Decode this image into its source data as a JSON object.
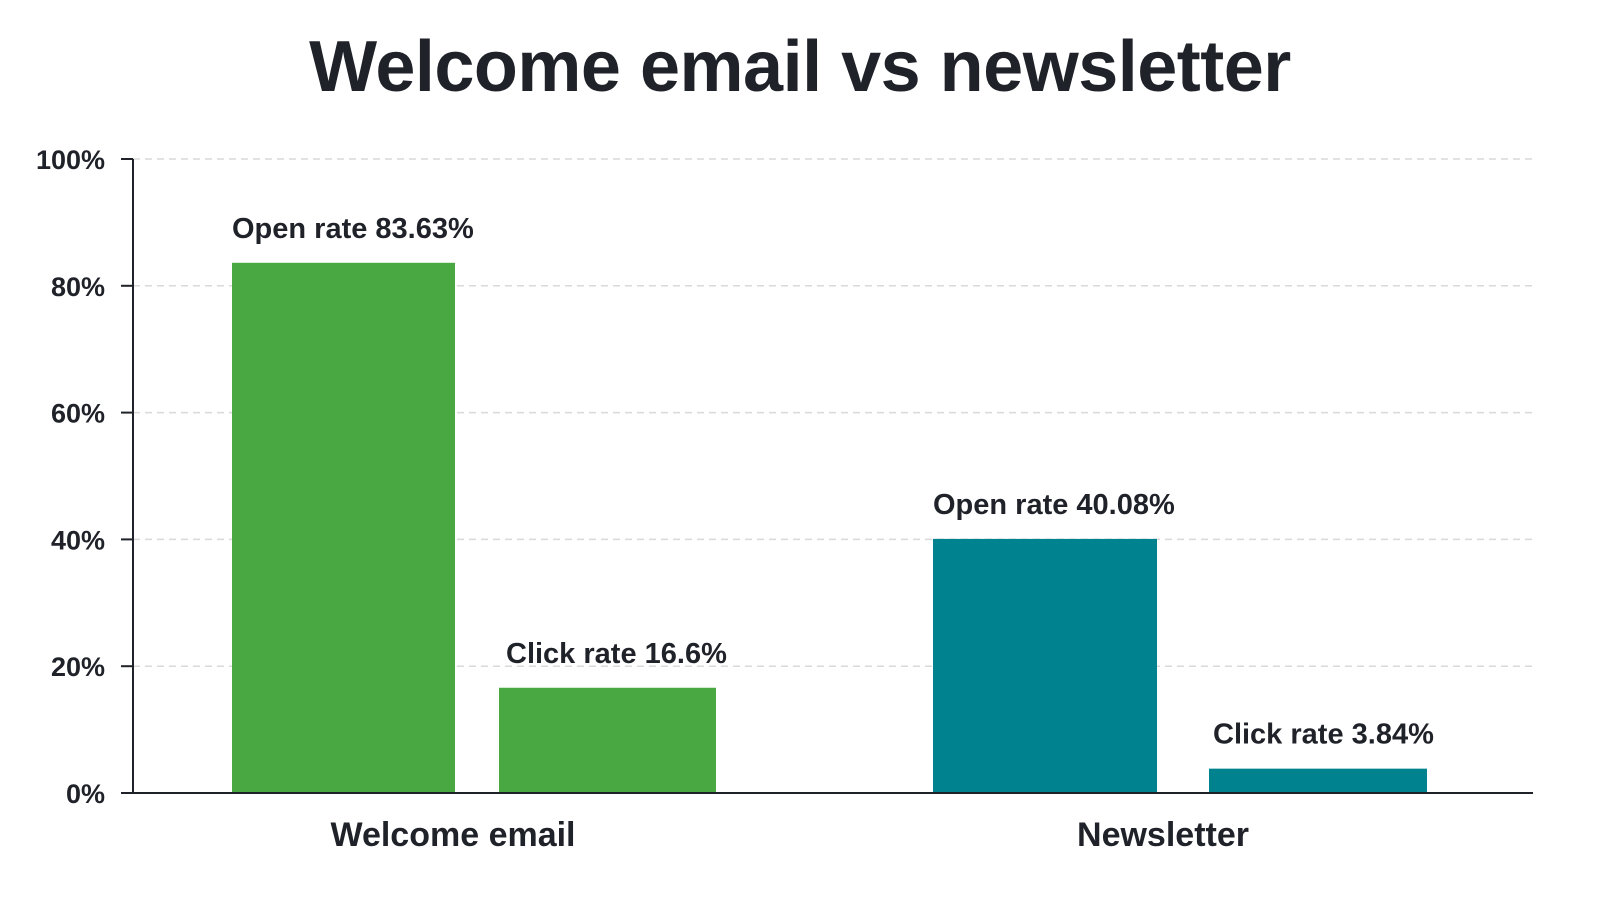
{
  "chart_data": {
    "type": "bar",
    "title": "Welcome email vs newsletter",
    "xlabel": "",
    "ylabel": "",
    "ylim": [
      0,
      100
    ],
    "y_ticks": [
      "0%",
      "20%",
      "40%",
      "60%",
      "80%",
      "100%"
    ],
    "y_tick_values": [
      0,
      20,
      40,
      60,
      80,
      100
    ],
    "grid": true,
    "legend": "none",
    "categories": [
      "Welcome email",
      "Newsletter"
    ],
    "bars": [
      {
        "category": "Welcome email",
        "metric": "Open rate",
        "value": 83.63,
        "label": "Open rate 83.63%",
        "color": "#4aa843"
      },
      {
        "category": "Welcome email",
        "metric": "Click rate",
        "value": 16.6,
        "label": "Click rate 16.6%",
        "color": "#4aa843"
      },
      {
        "category": "Newsletter",
        "metric": "Open rate",
        "value": 40.08,
        "label": "Open rate 40.08%",
        "color": "#00838f"
      },
      {
        "category": "Newsletter",
        "metric": "Click rate",
        "value": 3.84,
        "label": "Click rate 3.84%",
        "color": "#00838f"
      }
    ],
    "colors": {
      "welcome_email": "#4aa843",
      "newsletter": "#00838f",
      "text": "#1f2229",
      "grid": "#d9d9d9",
      "axis": "#1f2229"
    }
  }
}
